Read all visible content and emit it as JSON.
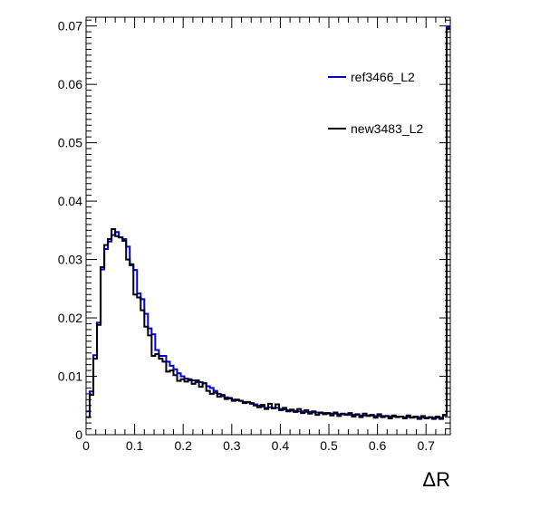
{
  "chart_data": {
    "type": "histogram-step",
    "xlabel": "ΔR",
    "ylabel": "",
    "xlim": [
      0,
      0.75
    ],
    "ylim": [
      0,
      0.0715
    ],
    "bin_width": 0.0075,
    "x_ticks": [
      "0",
      "0.1",
      "0.2",
      "0.3",
      "0.4",
      "0.5",
      "0.6",
      "0.7"
    ],
    "x_tick_values": [
      0,
      0.1,
      0.2,
      0.3,
      0.4,
      0.5,
      0.6,
      0.7
    ],
    "y_ticks": [
      "0",
      "0.01",
      "0.02",
      "0.03",
      "0.04",
      "0.05",
      "0.06",
      "0.07"
    ],
    "y_tick_values": [
      0,
      0.01,
      0.02,
      0.03,
      0.04,
      0.05,
      0.06,
      0.07
    ],
    "grid": false,
    "legend_position": "top-right",
    "series": [
      {
        "name": "ref3466_L2",
        "color": "#0000cc",
        "values": [
          0.004,
          0.0074,
          0.0136,
          0.0192,
          0.0283,
          0.0318,
          0.0331,
          0.0342,
          0.0347,
          0.0338,
          0.0335,
          0.0322,
          0.029,
          0.0282,
          0.0242,
          0.0232,
          0.0207,
          0.0182,
          0.0172,
          0.0145,
          0.0135,
          0.0135,
          0.0125,
          0.0118,
          0.0112,
          0.0105,
          0.01,
          0.0096,
          0.0093,
          0.0093,
          0.009,
          0.009,
          0.0088,
          0.0083,
          0.008,
          0.0075,
          0.007,
          0.0066,
          0.0064,
          0.0063,
          0.006,
          0.0059,
          0.0058,
          0.0056,
          0.0055,
          0.0053,
          0.0052,
          0.005,
          0.0048,
          0.0046,
          0.0047,
          0.0045,
          0.0046,
          0.0044,
          0.0043,
          0.0042,
          0.0041,
          0.0041,
          0.004,
          0.004,
          0.0039,
          0.0039,
          0.0038,
          0.0038,
          0.0037,
          0.0037,
          0.0036,
          0.0036,
          0.0036,
          0.0035,
          0.0035,
          0.0035,
          0.0034,
          0.0034,
          0.0034,
          0.0033,
          0.0033,
          0.0033,
          0.0033,
          0.0032,
          0.0032,
          0.0032,
          0.0032,
          0.0031,
          0.0031,
          0.0031,
          0.0031,
          0.003,
          0.003,
          0.003,
          0.003,
          0.003,
          0.0029,
          0.0029,
          0.0029,
          0.0029,
          0.0029,
          0.0029,
          0.0033,
          0.0698
        ]
      },
      {
        "name": "new3483_L2",
        "color": "#000000",
        "values": [
          0.003,
          0.0068,
          0.013,
          0.0188,
          0.0287,
          0.0325,
          0.0335,
          0.0352,
          0.034,
          0.0338,
          0.0332,
          0.03,
          0.0292,
          0.024,
          0.0235,
          0.0213,
          0.0185,
          0.017,
          0.0135,
          0.0138,
          0.013,
          0.0125,
          0.0108,
          0.011,
          0.0102,
          0.0092,
          0.0095,
          0.0091,
          0.0095,
          0.0087,
          0.0093,
          0.0082,
          0.0088,
          0.0075,
          0.007,
          0.0072,
          0.0065,
          0.0068,
          0.0061,
          0.0062,
          0.0058,
          0.006,
          0.0058,
          0.0054,
          0.0056,
          0.0054,
          0.005,
          0.0047,
          0.0051,
          0.0044,
          0.0053,
          0.0046,
          0.0052,
          0.0042,
          0.0046,
          0.004,
          0.0043,
          0.0039,
          0.0044,
          0.0037,
          0.0042,
          0.0036,
          0.004,
          0.0034,
          0.0038,
          0.0035,
          0.0037,
          0.0033,
          0.0038,
          0.0032,
          0.0036,
          0.0034,
          0.0037,
          0.0031,
          0.0035,
          0.003,
          0.0036,
          0.0032,
          0.0034,
          0.0029,
          0.0035,
          0.003,
          0.0032,
          0.0028,
          0.0033,
          0.003,
          0.0031,
          0.0028,
          0.0033,
          0.0029,
          0.0031,
          0.0027,
          0.0032,
          0.0028,
          0.003,
          0.0027,
          0.0031,
          0.0027,
          0.0034,
          0.0695
        ]
      }
    ]
  }
}
